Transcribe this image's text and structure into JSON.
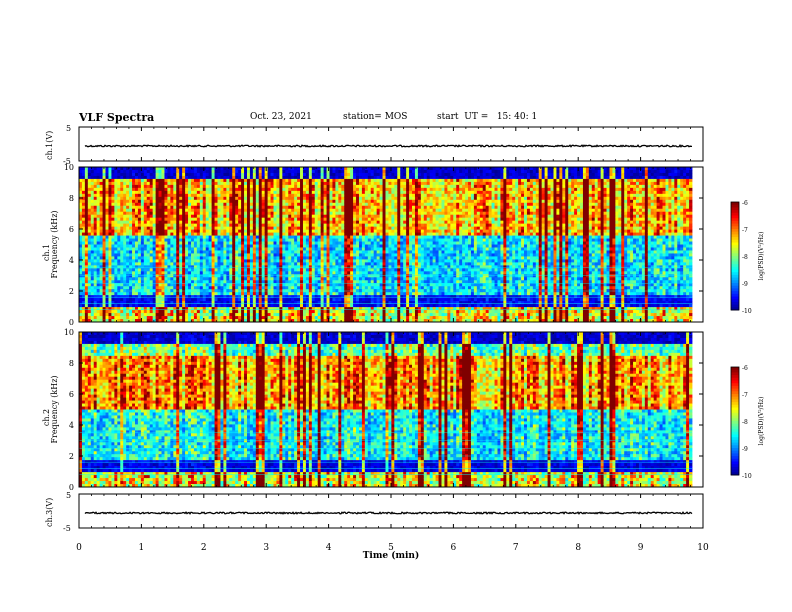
{
  "header": {
    "title": "VLF Spectra",
    "date": "Oct. 23, 2021",
    "station": "station= MOS",
    "start_ut": "start  UT =   15: 40: 1"
  },
  "chart_data": [
    {
      "type": "line",
      "panel": "ch1-waveform",
      "ylabel": "ch.1(V)",
      "yticks": [
        "5",
        "-5"
      ],
      "ylim": [
        -5,
        5
      ],
      "xlim": [
        0,
        10
      ]
    },
    {
      "type": "heatmap",
      "panel": "ch1-spectrogram",
      "ylabel": "ch.1",
      "ylabel2": "Frequency (kHz)",
      "ylim": [
        0,
        10
      ],
      "yticks": [
        "0",
        "2",
        "4",
        "6",
        "8",
        "10"
      ],
      "xlim": [
        0,
        10
      ],
      "colorbar": {
        "label": "log(PSD)(V²/Hz)",
        "ticks": [
          "-6",
          "-7",
          "-8",
          "-9",
          "-10"
        ],
        "range": [
          -10,
          -6
        ]
      }
    },
    {
      "type": "heatmap",
      "panel": "ch2-spectrogram",
      "ylabel": "ch.2",
      "ylabel2": "Frequency (kHz)",
      "ylim": [
        0,
        10
      ],
      "yticks": [
        "0",
        "2",
        "4",
        "6",
        "8",
        "10"
      ],
      "xlim": [
        0,
        10
      ],
      "colorbar": {
        "label": "log(PSD)(V²/Hz)",
        "ticks": [
          "-6",
          "-7",
          "-8",
          "-9",
          "-10"
        ],
        "range": [
          -10,
          -6
        ]
      }
    },
    {
      "type": "line",
      "panel": "ch3-waveform",
      "ylabel": "ch.3(V)",
      "yticks": [
        "5",
        "-5"
      ],
      "ylim": [
        -5,
        5
      ],
      "xlim": [
        0,
        10
      ],
      "xlabel": "Time (min)",
      "xticks": [
        "0",
        "1",
        "2",
        "3",
        "4",
        "5",
        "6",
        "7",
        "8",
        "9",
        "10"
      ]
    }
  ]
}
